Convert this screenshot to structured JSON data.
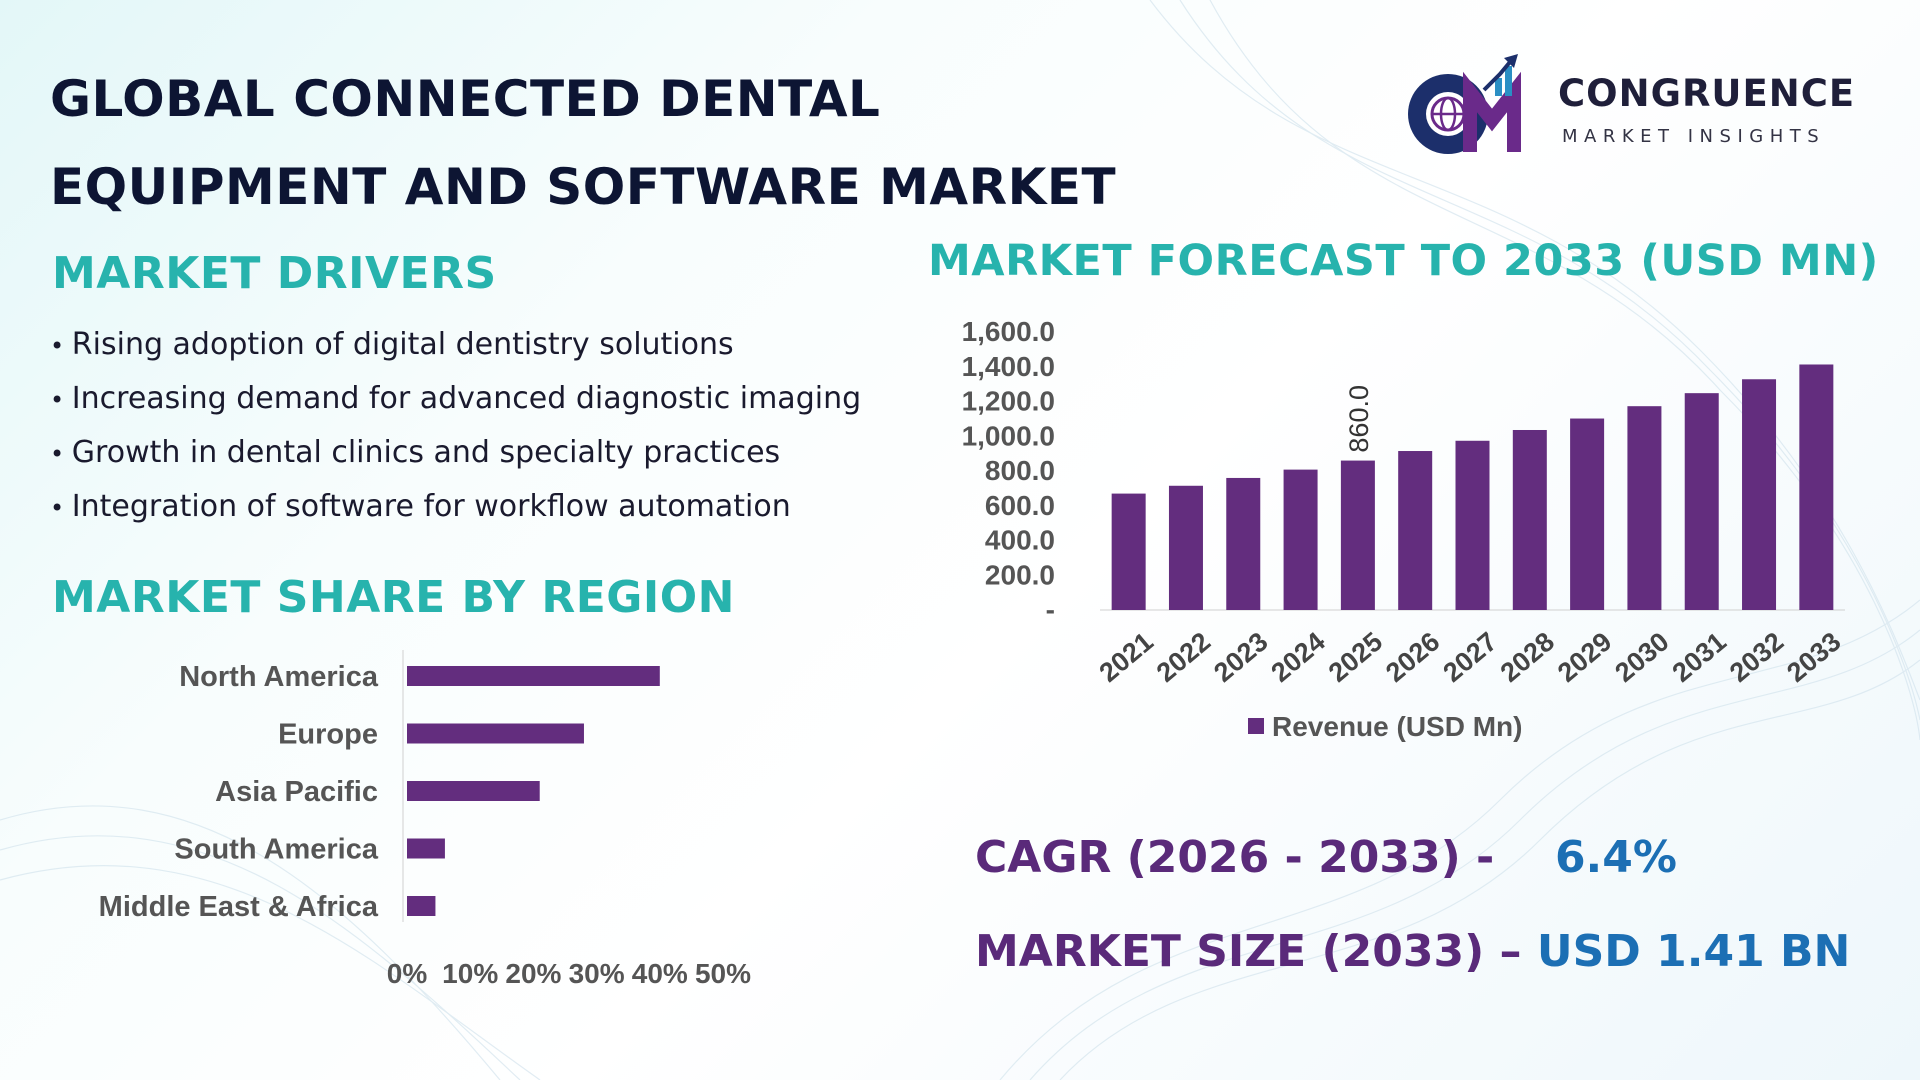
{
  "title_line1": "GLOBAL CONNECTED DENTAL",
  "title_line2": "EQUIPMENT AND SOFTWARE MARKET",
  "logo": {
    "icon": "globe-chart-logo-icon",
    "name": "CONGRUENCE",
    "subtitle": "MARKET INSIGHTS",
    "colors": [
      "#1c2f6b",
      "#6a2a8a",
      "#2a8fc4"
    ]
  },
  "drivers": {
    "title": "MARKET DRIVERS",
    "items": [
      "Rising adoption of digital dentistry solutions",
      "Increasing demand for advanced diagnostic imaging",
      "Growth in dental clinics and specialty practices",
      "Integration of software for workflow automation"
    ]
  },
  "forecast": {
    "title": "MARKET FORECAST TO 2033 (USD MN)"
  },
  "share": {
    "title": "MARKET SHARE BY REGION"
  },
  "stats": {
    "cagr_label": "CAGR (2026 - 2033) -",
    "cagr_value": "6.4%",
    "size_label": "MARKET SIZE (2033) –",
    "size_value": "USD 1.41 BN"
  },
  "colors": {
    "accent": "#27b3ad",
    "bar": "#632d7e",
    "stat_label": "#5a2a7a",
    "stat_value": "#1c6fb4",
    "title": "#0d1533"
  },
  "chart_data": [
    {
      "type": "bar",
      "orientation": "vertical",
      "categories": [
        "2021",
        "2022",
        "2023",
        "2024",
        "2025",
        "2026",
        "2027",
        "2028",
        "2029",
        "2030",
        "2031",
        "2032",
        "2033"
      ],
      "series": [
        {
          "name": "Revenue (USD Mn)",
          "values": [
            670,
            715,
            760,
            808,
            860,
            915,
            974,
            1036,
            1102,
            1173,
            1248,
            1328,
            1413
          ]
        }
      ],
      "data_labels": [
        {
          "category": "2025",
          "text": "860.0"
        }
      ],
      "yticks": [
        "-",
        "200.0",
        "400.0",
        "600.0",
        "800.0",
        "1,000.0",
        "1,200.0",
        "1,400.0",
        "1,600.0"
      ],
      "ylim": [
        0,
        1600
      ],
      "legend": "bottom",
      "grid": false
    },
    {
      "type": "bar",
      "orientation": "horizontal",
      "categories": [
        "North America",
        "Europe",
        "Asia Pacific",
        "South America",
        "Middle East & Africa"
      ],
      "values": [
        40,
        28,
        21,
        6,
        4.5
      ],
      "xticks": [
        "0%",
        "10%",
        "20%",
        "30%",
        "40%",
        "50%"
      ],
      "xlim": [
        0,
        50
      ],
      "grid": false
    }
  ]
}
